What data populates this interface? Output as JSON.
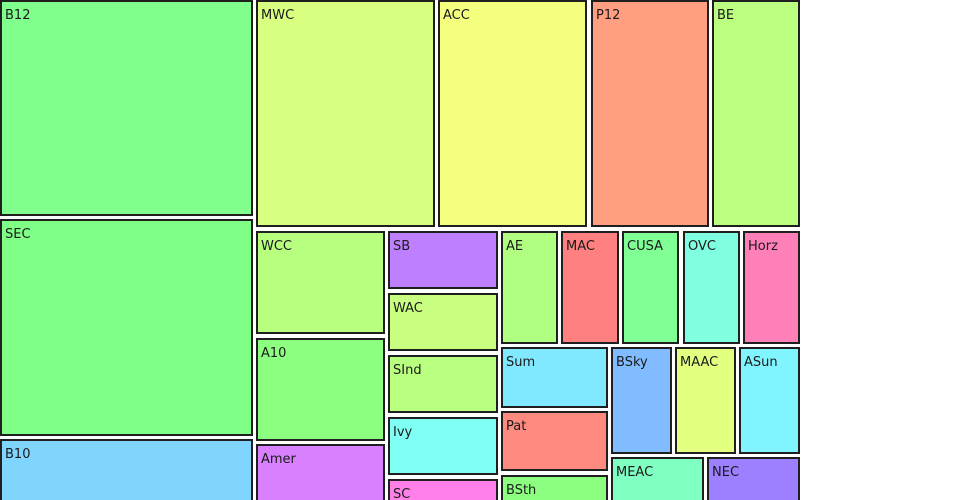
{
  "chart_data": {
    "type": "treemap",
    "title": "",
    "tiles": [
      {
        "label": "B12",
        "color": "#80ff8c"
      },
      {
        "label": "SEC",
        "color": "#80ff86"
      },
      {
        "label": "B10",
        "color": "#80d5ff"
      },
      {
        "label": "MWC",
        "color": "#d9ff80"
      },
      {
        "label": "ACC",
        "color": "#f4ff80"
      },
      {
        "label": "P12",
        "color": "#ff9e80"
      },
      {
        "label": "BE",
        "color": "#bcff80"
      },
      {
        "label": "WCC",
        "color": "#b8ff80"
      },
      {
        "label": "A10",
        "color": "#8dff80"
      },
      {
        "label": "Amer",
        "color": "#d980ff"
      },
      {
        "label": "SB",
        "color": "#bf80ff"
      },
      {
        "label": "WAC",
        "color": "#c9ff80"
      },
      {
        "label": "SInd",
        "color": "#b9ff80"
      },
      {
        "label": "Ivy",
        "color": "#80fff4"
      },
      {
        "label": "SC",
        "color": "#ff80e8"
      },
      {
        "label": "AE",
        "color": "#b0ff80"
      },
      {
        "label": "MAC",
        "color": "#ff8080"
      },
      {
        "label": "CUSA",
        "color": "#80ff94"
      },
      {
        "label": "OVC",
        "color": "#80ffe0"
      },
      {
        "label": "Horz",
        "color": "#ff80b9"
      },
      {
        "label": "Sum",
        "color": "#80e8ff"
      },
      {
        "label": "Pat",
        "color": "#ff8a80"
      },
      {
        "label": "BSth",
        "color": "#8cff80"
      },
      {
        "label": "BSky",
        "color": "#80bcff"
      },
      {
        "label": "MAAC",
        "color": "#e2ff80"
      },
      {
        "label": "ASun",
        "color": "#80f4ff"
      },
      {
        "label": "MEAC",
        "color": "#80ffc3"
      },
      {
        "label": "NEC",
        "color": "#9c80ff"
      }
    ]
  }
}
